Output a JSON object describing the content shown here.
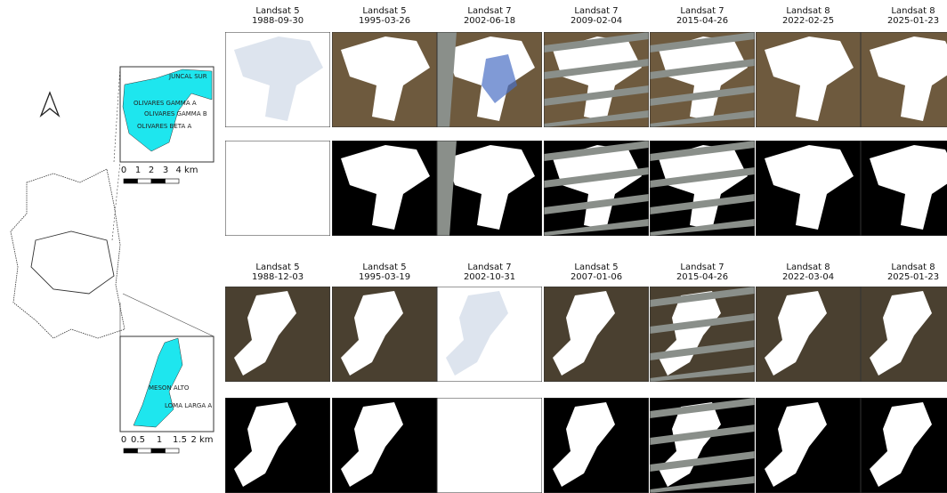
{
  "inset_top": {
    "labels": [
      "JUNCAL SUR",
      "OLIVARES GAMMA A",
      "OLIVARES GAMMA B",
      "OLIVARES BETA A"
    ],
    "scale": [
      "0",
      "1",
      "2",
      "3",
      "4 km"
    ]
  },
  "inset_bottom": {
    "labels": [
      "MESON ALTO",
      "LOMA LARGA A"
    ],
    "scale": [
      "0",
      "0.5",
      "1",
      "1.5",
      "2 km"
    ]
  },
  "groups": [
    {
      "columns": [
        {
          "sensor": "Landsat 5",
          "date": "1988-09-30"
        },
        {
          "sensor": "Landsat 5",
          "date": "1995-03-26"
        },
        {
          "sensor": "Landsat 7",
          "date": "2002-06-18"
        },
        {
          "sensor": "Landsat 7",
          "date": "2009-02-04"
        },
        {
          "sensor": "Landsat 7",
          "date": "2015-04-26"
        },
        {
          "sensor": "Landsat 8",
          "date": "2022-02-25"
        },
        {
          "sensor": "Landsat 8",
          "date": "2025-01-23"
        }
      ]
    },
    {
      "columns": [
        {
          "sensor": "Landsat 5",
          "date": "1988-12-03"
        },
        {
          "sensor": "Landsat 5",
          "date": "1995-03-19"
        },
        {
          "sensor": "Landsat 7",
          "date": "2002-10-31"
        },
        {
          "sensor": "Landsat 5",
          "date": "2007-01-06"
        },
        {
          "sensor": "Landsat 7",
          "date": "2015-04-26"
        },
        {
          "sensor": "Landsat 8",
          "date": "2022-03-04"
        },
        {
          "sensor": "Landsat 8",
          "date": "2025-01-23"
        }
      ]
    }
  ]
}
